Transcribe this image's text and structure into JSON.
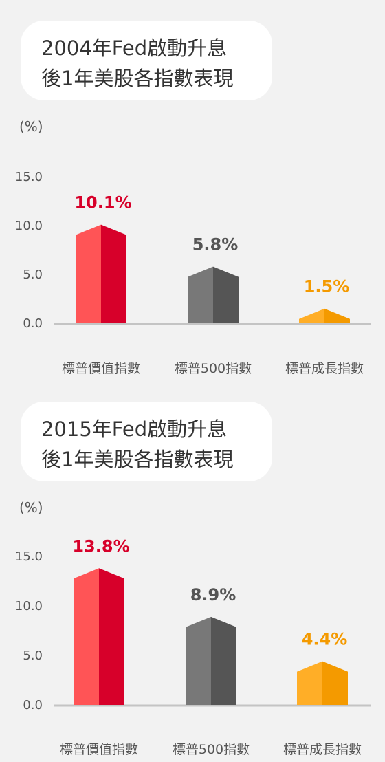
{
  "chart_data": [
    {
      "type": "bar",
      "title_lines": [
        "2004年Fed啟動升息",
        "後1年美股各指數表現"
      ],
      "unit": "(%)",
      "categories": [
        "標普價值指數",
        "標普500指數",
        "標普成長指數"
      ],
      "values": [
        10.1,
        5.8,
        1.5
      ],
      "data_labels": [
        "10.1%",
        "5.8%",
        "1.5%"
      ],
      "yticks": [
        "0.0",
        "5.0",
        "10.0",
        "15.0"
      ],
      "ylim": [
        0,
        15
      ],
      "grid": false
    },
    {
      "type": "bar",
      "title_lines": [
        "2015年Fed啟動升息",
        "後1年美股各指數表現"
      ],
      "unit": "(%)",
      "categories": [
        "標普價值指數",
        "標普500指數",
        "標普成長指數"
      ],
      "values": [
        13.8,
        8.9,
        4.4
      ],
      "data_labels": [
        "13.8%",
        "8.9%",
        "4.4%"
      ],
      "yticks": [
        "0.0",
        "5.0",
        "10.0",
        "15.0"
      ],
      "ylim": [
        0,
        15
      ],
      "grid": false
    }
  ],
  "colors": {
    "value_light": "#ff5456",
    "value_dark": "#d7002a",
    "sp500_light": "#787878",
    "sp500_dark": "#555555",
    "growth_light": "#ffae27",
    "growth_dark": "#f49a00",
    "baseline": "#c4c4c4"
  }
}
